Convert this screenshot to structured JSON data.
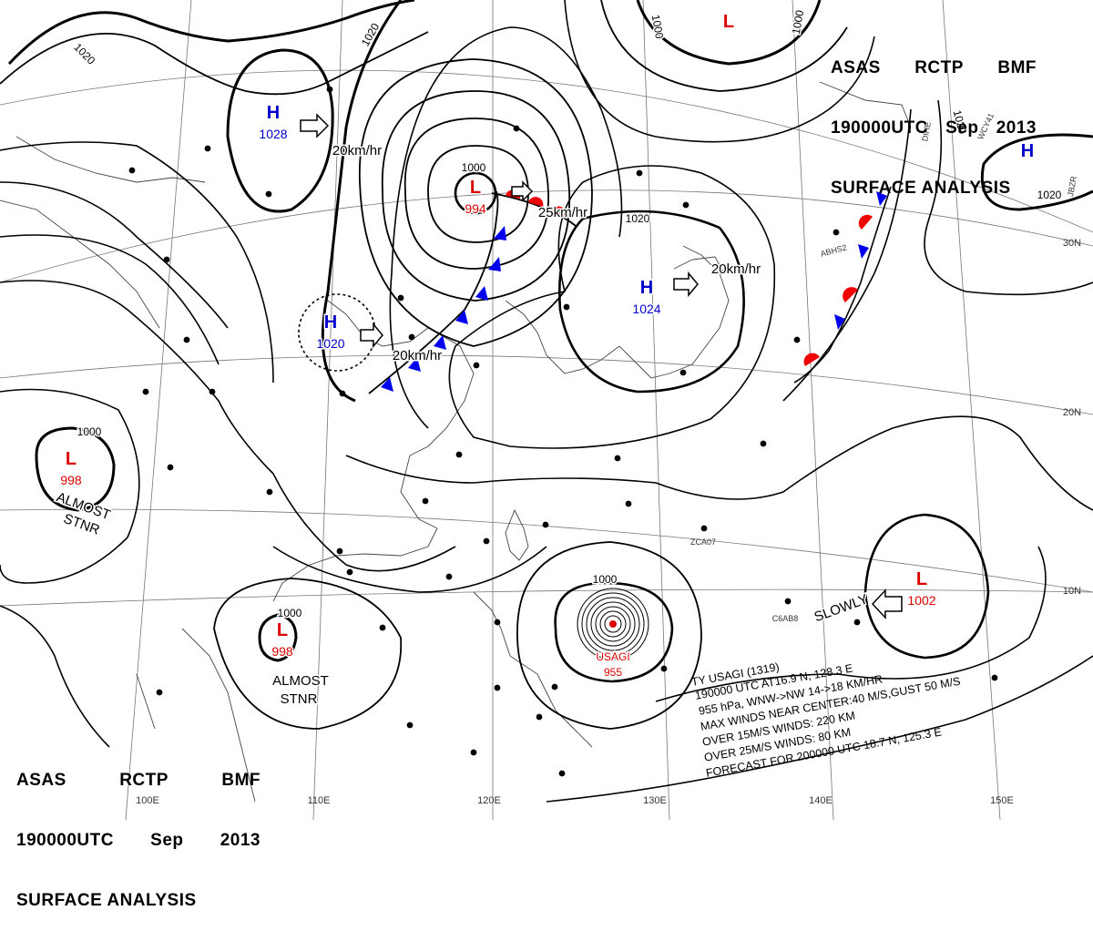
{
  "header": {
    "line1": [
      "ASAS",
      "RCTP",
      "BMF"
    ],
    "line2": [
      "190000UTC",
      "Sep",
      "2013"
    ],
    "line3": "SURFACE ANALYSIS"
  },
  "pressure_systems": [
    {
      "type": "H",
      "pressure": "1028",
      "color": "#0000cc"
    },
    {
      "type": "L",
      "pressure": "994",
      "color": "#dd0000"
    },
    {
      "type": "H",
      "pressure": "1024",
      "color": "#0000cc"
    },
    {
      "type": "H",
      "pressure": "1020",
      "color": "#0000cc"
    },
    {
      "type": "L",
      "pressure": "998",
      "color": "#dd0000"
    },
    {
      "type": "L",
      "pressure": "998",
      "color": "#dd0000"
    },
    {
      "type": "L",
      "pressure": "1002",
      "color": "#dd0000"
    },
    {
      "type": "L",
      "pressure": "",
      "color": "#dd0000"
    },
    {
      "type": "H",
      "pressure": "",
      "color": "#0000cc"
    }
  ],
  "typhoon": {
    "name": "USAGI",
    "pressure": "955"
  },
  "isobar_labels": [
    "1020",
    "1020",
    "1020",
    "1000",
    "1020",
    "1000",
    "1000",
    "1000",
    "1000",
    "1000",
    "1020"
  ],
  "motion_labels": [
    "20km/hr",
    "25km/hr",
    "20km/hr",
    "20km/hr",
    "SLOWLY"
  ],
  "notes": [
    {
      "line1": "ALMOST",
      "line2": "STNR"
    },
    {
      "line1": "ALMOST",
      "line2": "STNR"
    }
  ],
  "typhoon_info": [
    "TY  USAGI  (1319)",
    "190000 UTC  AT16.9 N, 128.3 E",
    "955 hPa, WNW->NW  14->18 KM/HR",
    "MAX WINDS NEAR CENTER:40 M/S,GUST 50 M/S",
    "OVER 15M/S WINDS: 220 KM",
    "OVER 25M/S WINDS: 80 KM",
    "FORECAST FOR 200000 UTC 18.7 N, 125.3 E"
  ],
  "lon_labels": [
    "100E",
    "110E",
    "120E",
    "130E",
    "140E",
    "150E"
  ],
  "lat_labels": [
    "30N",
    "20N",
    "10N"
  ],
  "station_codes": [
    "WCY41",
    "JBZR",
    "ABHS2",
    "ZCA07",
    "C6AB8",
    "DIHE"
  ],
  "colors": {
    "high": "#0000cc",
    "low": "#dd0000",
    "cold_front": "#0000ee",
    "warm_front": "#ee0000",
    "isobar": "#000000",
    "coast": "#444444"
  }
}
